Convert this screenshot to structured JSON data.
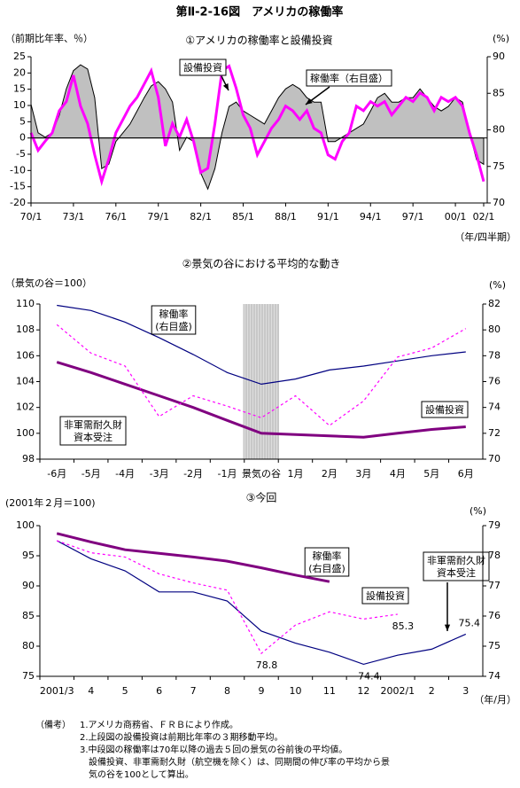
{
  "title": "第Ⅱ-2-16図　アメリカの稼働率",
  "chart_data": [
    {
      "type": "line",
      "title": "①アメリカの稼働率と設備投資",
      "ylabel": "（前期比年率、％）",
      "y2label": "(%)",
      "xlabel": "（年/四半期）",
      "x": [
        1970,
        1970.5,
        1971,
        1971.5,
        1972,
        1972.5,
        1973,
        1973.5,
        1974,
        1974.5,
        1975,
        1975.5,
        1976,
        1976.5,
        1977,
        1977.5,
        1978,
        1978.5,
        1979,
        1979.5,
        1980,
        1980.5,
        1981,
        1981.5,
        1982,
        1982.5,
        1983,
        1983.5,
        1984,
        1984.5,
        1985,
        1985.5,
        1986,
        1986.5,
        1987,
        1987.5,
        1988,
        1988.5,
        1989,
        1989.5,
        1990,
        1990.5,
        1991,
        1991.5,
        1992,
        1992.5,
        1993,
        1993.5,
        1994,
        1994.5,
        1995,
        1995.5,
        1996,
        1996.5,
        1997,
        1997.5,
        1998,
        1998.5,
        1999,
        1999.5,
        2000,
        2000.5,
        2001,
        2001.5,
        2002
      ],
      "xlim": [
        1970,
        2002.25
      ],
      "xticks": [
        {
          "value": 1970,
          "label": "70/1"
        },
        {
          "value": 1973,
          "label": "73/1"
        },
        {
          "value": 1976,
          "label": "76/1"
        },
        {
          "value": 1979,
          "label": "79/1"
        },
        {
          "value": 1982,
          "label": "82/1"
        },
        {
          "value": 1985,
          "label": "85/1"
        },
        {
          "value": 1988,
          "label": "88/1"
        },
        {
          "value": 1991,
          "label": "91/1"
        },
        {
          "value": 1994,
          "label": "94/1"
        },
        {
          "value": 1997,
          "label": "97/1"
        },
        {
          "value": 2000,
          "label": "00/1"
        },
        {
          "value": 2002,
          "label": "02/1"
        }
      ],
      "ylim": [
        -20,
        25
      ],
      "yticks": [
        -20,
        -15,
        -10,
        -5,
        0,
        5,
        10,
        15,
        20,
        25
      ],
      "y2lim": [
        70,
        90
      ],
      "y2ticks": [
        70,
        75,
        80,
        85,
        90
      ],
      "series": [
        {
          "name": "稼働率（右目盛）",
          "axis": "y2",
          "style": "area",
          "color": "#c0c0c0",
          "values": [
            83.5,
            79.6,
            79.0,
            79.6,
            82.0,
            85.6,
            88.1,
            88.9,
            88.3,
            84.4,
            74.7,
            75.3,
            78.4,
            79.6,
            80.8,
            82.6,
            84.4,
            86.0,
            86.6,
            85.6,
            83.8,
            77.2,
            79.0,
            78.4,
            74.1,
            71.9,
            74.7,
            79.6,
            83.2,
            83.8,
            82.6,
            82.0,
            81.4,
            80.8,
            82.6,
            84.4,
            85.6,
            86.2,
            85.6,
            84.4,
            83.8,
            83.8,
            78.4,
            78.4,
            79.0,
            79.6,
            80.2,
            80.8,
            82.6,
            84.4,
            85.0,
            83.8,
            83.8,
            84.4,
            84.4,
            85.6,
            84.4,
            83.2,
            82.6,
            83.2,
            84.4,
            83.8,
            79.6,
            75.9,
            75.3
          ]
        },
        {
          "name": "設備投資",
          "style": "line",
          "color": "#ff00ff",
          "values": [
            1.6,
            -3.8,
            -1.0,
            1.6,
            8.4,
            11.2,
            19.3,
            9.8,
            4.4,
            -5.2,
            -13.4,
            -6.5,
            1.6,
            5.7,
            9.8,
            12.5,
            16.6,
            20.7,
            12.5,
            -2.5,
            4.4,
            0.3,
            5.7,
            -1.1,
            -10.6,
            -9.3,
            4.4,
            20.7,
            22.1,
            15.3,
            7.1,
            3.0,
            -5.2,
            -1.1,
            3.0,
            5.7,
            9.8,
            8.4,
            5.7,
            8.4,
            3.0,
            1.6,
            -5.2,
            -6.5,
            -1.1,
            1.6,
            9.8,
            8.4,
            11.2,
            9.8,
            11.2,
            7.1,
            9.8,
            12.5,
            11.2,
            13.9,
            12.5,
            8.4,
            12.5,
            11.2,
            12.5,
            9.8,
            1.6,
            -5.2,
            -13.4
          ]
        }
      ]
    },
    {
      "type": "line",
      "title": "②景気の谷における平均的な動き",
      "ylabel": "（景気の谷＝100）",
      "y2label": "(%)",
      "categories": [
        "-6月",
        "-5月",
        "-4月",
        "-3月",
        "-2月",
        "-1月",
        "景気の谷",
        "1月",
        "2月",
        "3月",
        "4月",
        "5月",
        "6月"
      ],
      "ylim": [
        98,
        110
      ],
      "yticks": [
        98,
        100,
        102,
        104,
        106,
        108,
        110
      ],
      "y2lim": [
        70,
        82
      ],
      "y2ticks": [
        70,
        72,
        74,
        76,
        78,
        80,
        82
      ],
      "series": [
        {
          "name": "稼働率\n(右目盛)",
          "axis": "y2",
          "style": "line",
          "color": "#000080",
          "values": [
            81.9,
            81.5,
            80.6,
            79.4,
            78.1,
            76.7,
            75.8,
            76.2,
            76.9,
            77.2,
            77.6,
            78.0,
            78.3
          ]
        },
        {
          "name": "設備投資",
          "style": "thick",
          "color": "#800080",
          "values": [
            105.5,
            104.7,
            103.8,
            102.9,
            102.0,
            101.0,
            100.0,
            99.9,
            99.8,
            99.7,
            100.0,
            100.3,
            100.5
          ]
        },
        {
          "name": "非軍需耐久財\n資本受注",
          "style": "dotted",
          "color": "#ff00ff",
          "values": [
            108.4,
            106.2,
            105.2,
            101.3,
            102.9,
            102.1,
            101.2,
            102.9,
            100.6,
            102.5,
            105.9,
            106.6,
            108.1
          ]
        }
      ]
    },
    {
      "type": "line",
      "title": "③今回",
      "ylabel": "(2001年２月＝100)",
      "y2label": "(%)",
      "xlabel": "（年/月）",
      "categories": [
        "2001/3",
        "4",
        "5",
        "6",
        "7",
        "8",
        "9",
        "10",
        "11",
        "12",
        "2002/1",
        "2",
        "3"
      ],
      "ylim": [
        75,
        100
      ],
      "yticks": [
        75,
        80,
        85,
        90,
        95,
        100
      ],
      "y2lim": [
        74,
        79
      ],
      "y2ticks": [
        74,
        75,
        76,
        77,
        78,
        79
      ],
      "series": [
        {
          "name": "稼働率\n(右目盛)",
          "axis": "y2",
          "style": "line",
          "color": "#000080",
          "values": [
            78.5,
            77.9,
            77.5,
            76.8,
            76.8,
            76.5,
            75.5,
            75.1,
            74.8,
            74.4,
            74.7,
            74.9,
            75.4
          ],
          "value_labels": [
            null,
            null,
            null,
            null,
            null,
            null,
            null,
            null,
            null,
            "74.4",
            null,
            null,
            "75.4"
          ]
        },
        {
          "name": "設備投資",
          "style": "thick",
          "color": "#800080",
          "values": [
            98.7,
            97.3,
            96.0,
            95.4,
            94.8,
            94.1,
            93.0,
            91.8,
            90.7,
            null,
            null,
            null,
            null
          ]
        },
        {
          "name": "非軍需耐久財\n資本受注",
          "style": "dotted",
          "color": "#ff00ff",
          "values": [
            97.5,
            95.5,
            94.8,
            92.0,
            90.5,
            89.3,
            78.8,
            83.5,
            85.7,
            84.5,
            85.3,
            null,
            null
          ],
          "value_labels": [
            null,
            null,
            null,
            null,
            null,
            null,
            "78.8",
            null,
            null,
            null,
            "85.3",
            null,
            null
          ]
        }
      ]
    }
  ],
  "notes": {
    "label": "（備考）",
    "items": [
      "1.アメリカ商務省、ＦＲＢにより作成。",
      "2.上段図の設備投資は前期比年率の３期移動平均。",
      "3.中段図の稼働率は70年以降の過去５回の景気の谷前後の平均値。",
      "　設備投資、非軍需耐久財（航空機を除く）は、同期間の伸び率の平均から景",
      "　気の谷を100として算出。"
    ]
  }
}
